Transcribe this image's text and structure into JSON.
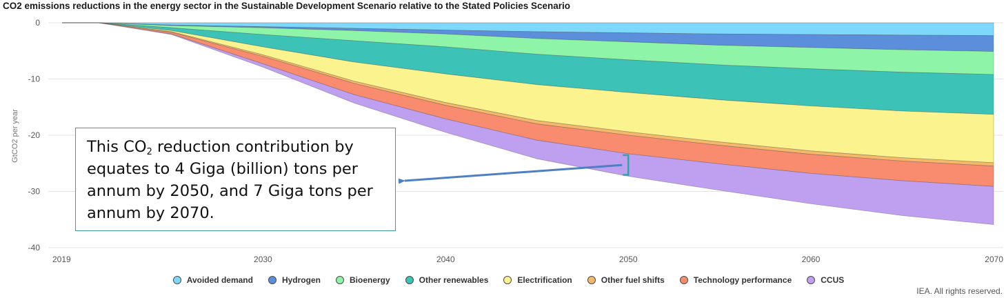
{
  "chart_data": {
    "type": "area",
    "stacked": true,
    "title": "CO2 emissions reductions in the energy sector in the Sustainable Development Scenario relative to the Stated Policies Scenario",
    "xlabel": "",
    "ylabel": "GtCO2 per year",
    "x": [
      2019,
      2021,
      2025,
      2030,
      2035,
      2040,
      2045,
      2050,
      2055,
      2060,
      2065,
      2070
    ],
    "ylim": [
      -40,
      0
    ],
    "xlim": [
      2019,
      2070
    ],
    "y_ticks": [
      0,
      -10,
      -20,
      -30,
      -40
    ],
    "y_tick_labels": [
      "0",
      "-10",
      "-20",
      "-30",
      "-40"
    ],
    "x_ticks": [
      2019,
      2030,
      2040,
      2050,
      2060,
      2070
    ],
    "x_tick_labels": [
      "2019",
      "2030",
      "2040",
      "2050",
      "2060",
      "2070"
    ],
    "grid": "horizontal",
    "legend_position": "bottom-center",
    "series": [
      {
        "name": "Avoided demand",
        "color": "#7dd8fb",
        "values": [
          0,
          0,
          -0.4,
          -0.7,
          -1.0,
          -1.3,
          -1.6,
          -1.8,
          -2.0,
          -2.1,
          -2.2,
          -2.3
        ]
      },
      {
        "name": "Hydrogen",
        "color": "#5b8fdc",
        "values": [
          0,
          0,
          -0.1,
          -0.2,
          -0.4,
          -0.7,
          -1.2,
          -1.6,
          -2.0,
          -2.3,
          -2.6,
          -2.8
        ]
      },
      {
        "name": "Bioenergy",
        "color": "#8ef5a8",
        "values": [
          0,
          0,
          -0.4,
          -1.2,
          -1.8,
          -2.3,
          -2.8,
          -3.2,
          -3.5,
          -3.8,
          -4.0,
          -4.1
        ]
      },
      {
        "name": "Other renewables",
        "color": "#3cc2b6",
        "values": [
          0,
          0,
          -0.5,
          -2.2,
          -3.8,
          -4.8,
          -5.4,
          -5.8,
          -6.2,
          -6.6,
          -6.9,
          -7.1
        ]
      },
      {
        "name": "Electrification",
        "color": "#fbf48e",
        "values": [
          0,
          0,
          -0.2,
          -1.4,
          -3.4,
          -5.1,
          -6.4,
          -7.0,
          -7.5,
          -8.0,
          -8.3,
          -8.6
        ]
      },
      {
        "name": "Other fuel shifts",
        "color": "#f5b86a",
        "values": [
          0,
          0,
          -0.1,
          -0.3,
          -0.4,
          -0.5,
          -0.6,
          -0.6,
          -0.6,
          -0.6,
          -0.6,
          -0.6
        ]
      },
      {
        "name": "Technology performance",
        "color": "#f98c6f",
        "values": [
          0,
          0,
          -0.3,
          -1.3,
          -2.0,
          -2.4,
          -2.9,
          -3.3,
          -3.3,
          -3.4,
          -3.5,
          -3.6
        ]
      },
      {
        "name": "CCUS",
        "color": "#bf9ff0",
        "values": [
          0,
          0,
          -0.1,
          -0.6,
          -1.5,
          -2.4,
          -3.3,
          -4.0,
          -4.7,
          -5.4,
          -6.2,
          -6.8
        ]
      }
    ],
    "annotation": {
      "text_parts": [
        "This CO",
        "2",
        " reduction contribution by equates to 4 Giga (billion) tons per annum by 2050, and 7 Giga tons per annum by 2070."
      ],
      "points_to_year": 2050
    },
    "source": "IEA. All rights reserved.",
    "colors": {
      "grid": "#e3e3e3",
      "annotation_border": "#3a9fa3",
      "arrow": "#4d7fc4"
    }
  }
}
